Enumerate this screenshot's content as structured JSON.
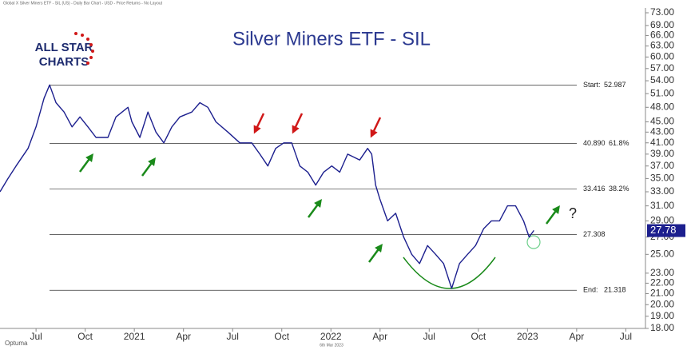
{
  "header": "Global X Silver Miners ETF - SIL (US) - Daily Bar Chart - USD - Price Returns - No Layout",
  "logo": {
    "line1": "ALL STAR",
    "line2": "CHARTS"
  },
  "footer": {
    "brand": "Optuma",
    "date": "6th Mar 2023"
  },
  "chart_data": {
    "type": "line",
    "title": "Silver Miners ETF - SIL",
    "log_scale": true,
    "x": [
      -2.2,
      -1.71,
      -1.22,
      -0.49,
      0,
      0.49,
      0.83,
      1.22,
      1.71,
      2.2,
      2.68,
      3.17,
      3.66,
      4.39,
      4.88,
      5.61,
      5.85,
      6.34,
      6.83,
      7.32,
      7.8,
      8.29,
      8.78,
      9.51,
      10,
      10.49,
      10.98,
      11.71,
      12.44,
      13.17,
      13.66,
      14.15,
      14.63,
      15.12,
      15.61,
      16.1,
      16.59,
      17.07,
      17.56,
      18.05,
      18.54,
      19.02,
      19.76,
      20.24,
      20.49,
      20.73,
      20.98,
      21.46,
      21.95,
      22.44,
      22.93,
      23.41,
      23.9,
      24.39,
      24.88,
      25.37,
      25.85,
      26.34,
      26.83,
      27.32,
      27.8,
      28.29,
      28.78,
      29.27,
      29.76,
      30.1,
      30.39
    ],
    "series": [
      {
        "name": "SIL",
        "color": "#1c1f8e",
        "values": [
          33,
          35,
          37,
          40,
          44,
          50,
          53,
          49,
          47,
          44,
          46,
          44,
          42,
          42,
          46,
          48,
          45,
          42,
          47,
          43,
          41,
          44,
          46,
          47,
          49,
          48,
          45,
          43,
          41,
          41,
          39,
          37,
          40,
          41,
          41,
          37,
          36,
          34,
          36,
          37,
          36,
          39,
          38,
          40,
          39,
          34,
          32,
          29,
          30,
          27,
          25,
          24,
          26,
          25,
          24,
          21.5,
          24,
          25,
          26,
          28,
          29,
          29,
          31,
          31,
          29,
          27,
          27.8
        ]
      }
    ],
    "xlim": [
      -2.2,
      37.2
    ],
    "xticks": [
      {
        "value": 0,
        "label": "Jul"
      },
      {
        "value": 3,
        "label": "Oct"
      },
      {
        "value": 6,
        "label": "2021"
      },
      {
        "value": 9,
        "label": "Apr"
      },
      {
        "value": 12,
        "label": "Jul"
      },
      {
        "value": 15,
        "label": "Oct"
      },
      {
        "value": 18,
        "label": "2022"
      },
      {
        "value": 21,
        "label": "Apr"
      },
      {
        "value": 24,
        "label": "Jul"
      },
      {
        "value": 27,
        "label": "Oct"
      },
      {
        "value": 30,
        "label": "2023"
      },
      {
        "value": 33,
        "label": "Apr"
      },
      {
        "value": 36,
        "label": "Jul"
      }
    ],
    "ylim": [
      18,
      73
    ],
    "yticks": [
      {
        "value": 73,
        "label": "73.00"
      },
      {
        "value": 69,
        "label": "69.00"
      },
      {
        "value": 66,
        "label": "66.00"
      },
      {
        "value": 63,
        "label": "63.00"
      },
      {
        "value": 60,
        "label": "60.00"
      },
      {
        "value": 57,
        "label": "57.00"
      },
      {
        "value": 54,
        "label": "54.00"
      },
      {
        "value": 51,
        "label": "51.00"
      },
      {
        "value": 48,
        "label": "48.00"
      },
      {
        "value": 45,
        "label": "45.00"
      },
      {
        "value": 43,
        "label": "43.00"
      },
      {
        "value": 41,
        "label": "41.00"
      },
      {
        "value": 39,
        "label": "39.00"
      },
      {
        "value": 37,
        "label": "37.00"
      },
      {
        "value": 35,
        "label": "35.00"
      },
      {
        "value": 33,
        "label": "33.00"
      },
      {
        "value": 31,
        "label": "31.00"
      },
      {
        "value": 29,
        "label": "29.00"
      },
      {
        "value": 27,
        "label": "27.00"
      },
      {
        "value": 25,
        "label": "25.00"
      },
      {
        "value": 23,
        "label": "23.00"
      },
      {
        "value": 22,
        "label": "22.00"
      },
      {
        "value": 21,
        "label": "21.00"
      },
      {
        "value": 20,
        "label": "20.00"
      },
      {
        "value": 19,
        "label": "19.00"
      },
      {
        "value": 18,
        "label": "18.00"
      }
    ],
    "levels": [
      {
        "name": "Start:",
        "value": 52.987
      },
      {
        "value": 40.89,
        "value_label": "40.890",
        "pct": "61.8%"
      },
      {
        "value": 33.416,
        "pct": "38.2%"
      },
      {
        "value": 27.308
      },
      {
        "name": "End:",
        "value": 21.318
      }
    ],
    "last_value": 27.78,
    "annotation": "?"
  }
}
